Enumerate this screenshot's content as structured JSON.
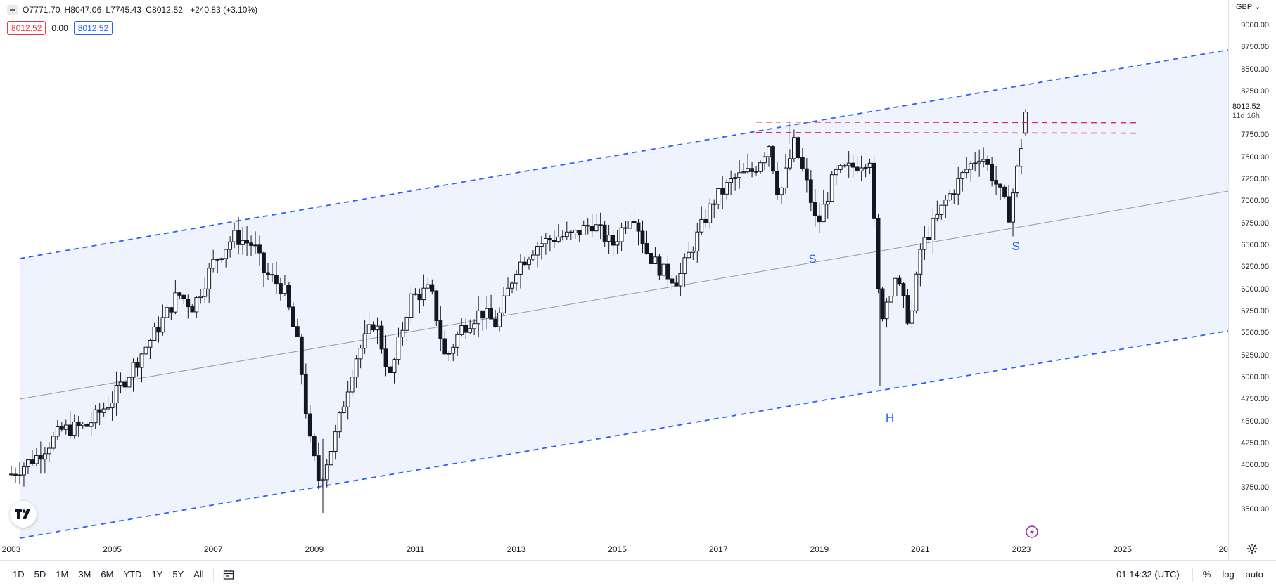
{
  "legend": {
    "open": "O7771.70",
    "high": "H8047.06",
    "low": "L7745.43",
    "close": "C8012.52",
    "change": "+240.83 (+3.10%)",
    "bid": "8012.52",
    "spread": "0.00",
    "ask": "8012.52"
  },
  "price_scale": {
    "currency": "GBP",
    "ticks": [
      "9000.00",
      "8750.00",
      "8500.00",
      "8250.00",
      "7750.00",
      "7500.00",
      "7250.00",
      "7000.00",
      "6750.00",
      "6500.00",
      "6250.00",
      "6000.00",
      "5750.00",
      "5500.00",
      "5250.00",
      "5000.00",
      "4750.00",
      "4500.00",
      "4250.00",
      "4000.00",
      "3750.00",
      "3500.00"
    ],
    "last_price": "8012.52",
    "countdown": "11d 16h"
  },
  "time_axis": {
    "ticks": [
      "2003",
      "2005",
      "2007",
      "2009",
      "2011",
      "2013",
      "2015",
      "2017",
      "2019",
      "2021",
      "2023",
      "2025",
      "20"
    ]
  },
  "annotations": {
    "left_shoulder": "S",
    "head": "H",
    "right_shoulder": "S"
  },
  "bottom_bar": {
    "ranges": [
      "1D",
      "5D",
      "1M",
      "3M",
      "6M",
      "YTD",
      "1Y",
      "5Y",
      "All"
    ],
    "clock": "01:14:32 (UTC)",
    "percent": "%",
    "log": "log",
    "auto": "auto"
  },
  "colors": {
    "channel": "#2962ff",
    "resistance": "#e91e63",
    "candle": "#131722",
    "channel_fill": "#eef3fd"
  },
  "chart_data": {
    "type": "candlestick",
    "interval": "monthly",
    "price_range": [
      3400,
      9050
    ],
    "time_range": [
      "2003",
      "2027"
    ],
    "key_levels": [
      7900,
      7780
    ],
    "pattern": "inverse head and shoulders",
    "series_closes": [
      [
        "2003.0",
        3900
      ],
      [
        "2003.5",
        4100
      ],
      [
        "2004.0",
        4400
      ],
      [
        "2004.5",
        4450
      ],
      [
        "2005.0",
        4750
      ],
      [
        "2005.5",
        5200
      ],
      [
        "2006.0",
        5650
      ],
      [
        "2006.3",
        5950
      ],
      [
        "2006.6",
        5800
      ],
      [
        "2007.0",
        6300
      ],
      [
        "2007.4",
        6600
      ],
      [
        "2007.8",
        6500
      ],
      [
        "2008.0",
        6200
      ],
      [
        "2008.4",
        6000
      ],
      [
        "2008.7",
        5300
      ],
      [
        "2008.9",
        4300
      ],
      [
        "2009.1",
        3800
      ],
      [
        "2009.4",
        4300
      ],
      [
        "2009.8",
        5200
      ],
      [
        "2010.2",
        5650
      ],
      [
        "2010.5",
        5000
      ],
      [
        "2010.9",
        5900
      ],
      [
        "2011.3",
        6000
      ],
      [
        "2011.6",
        5200
      ],
      [
        "2011.9",
        5550
      ],
      [
        "2012.3",
        5750
      ],
      [
        "2012.6",
        5600
      ],
      [
        "2013.0",
        6250
      ],
      [
        "2013.4",
        6500
      ],
      [
        "2013.8",
        6600
      ],
      [
        "2014.1",
        6600
      ],
      [
        "2014.5",
        6750
      ],
      [
        "2014.9",
        6500
      ],
      [
        "2015.3",
        6900
      ],
      [
        "2015.6",
        6400
      ],
      [
        "2015.9",
        6200
      ],
      [
        "2016.2",
        6100
      ],
      [
        "2016.5",
        6500
      ],
      [
        "2016.9",
        7000
      ],
      [
        "2017.3",
        7250
      ],
      [
        "2017.7",
        7350
      ],
      [
        "2018.0",
        7650
      ],
      [
        "2018.2",
        7050
      ],
      [
        "2018.5",
        7650
      ],
      [
        "2018.8",
        7100
      ],
      [
        "2018.95",
        6700
      ],
      [
        "2019.3",
        7300
      ],
      [
        "2019.7",
        7400
      ],
      [
        "2020.0",
        7500
      ],
      [
        "2020.2",
        5650
      ],
      [
        "2020.5",
        6150
      ],
      [
        "2020.8",
        5600
      ],
      [
        "2021.0",
        6450
      ],
      [
        "2021.5",
        7000
      ],
      [
        "2021.9",
        7350
      ],
      [
        "2022.2",
        7550
      ],
      [
        "2022.5",
        7200
      ],
      [
        "2022.75",
        6850
      ],
      [
        "2022.95",
        7450
      ],
      [
        "2023.1",
        8012.52
      ]
    ]
  }
}
